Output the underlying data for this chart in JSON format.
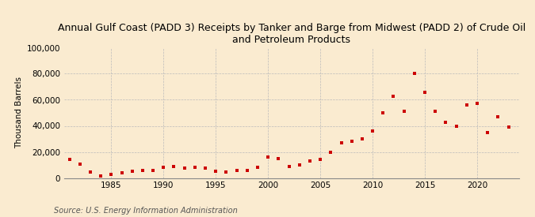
{
  "title": "Annual Gulf Coast (PADD 3) Receipts by Tanker and Barge from Midwest (PADD 2) of Crude Oil\nand Petroleum Products",
  "ylabel": "Thousand Barrels",
  "source": "Source: U.S. Energy Information Administration",
  "background_color": "#faebd0",
  "plot_bg_color": "#faebd0",
  "dot_color": "#cc0000",
  "years": [
    1981,
    1982,
    1983,
    1984,
    1985,
    1986,
    1987,
    1988,
    1989,
    1990,
    1991,
    1992,
    1993,
    1994,
    1995,
    1996,
    1997,
    1998,
    1999,
    2000,
    2001,
    2002,
    2003,
    2004,
    2005,
    2006,
    2007,
    2008,
    2009,
    2010,
    2011,
    2012,
    2013,
    2014,
    2015,
    2016,
    2017,
    2018,
    2019,
    2020,
    2021,
    2022,
    2023
  ],
  "values": [
    14500,
    10500,
    4500,
    1800,
    3000,
    4000,
    5000,
    5500,
    6000,
    8000,
    8500,
    7500,
    8000,
    7500,
    5000,
    4500,
    5500,
    6000,
    8000,
    16000,
    15000,
    9000,
    10000,
    13000,
    14000,
    20000,
    27000,
    28000,
    30000,
    36000,
    50000,
    63000,
    51000,
    80000,
    66000,
    51000,
    43000,
    40000,
    56000,
    57000,
    35000,
    47000,
    39000
  ],
  "xlim": [
    1980.5,
    2024
  ],
  "ylim": [
    0,
    100000
  ],
  "yticks": [
    0,
    20000,
    40000,
    60000,
    80000,
    100000
  ],
  "xticks": [
    1985,
    1990,
    1995,
    2000,
    2005,
    2010,
    2015,
    2020
  ],
  "grid_color": "#bbbbbb",
  "title_fontsize": 9,
  "axis_fontsize": 7.5,
  "source_fontsize": 7,
  "marker_size": 10
}
